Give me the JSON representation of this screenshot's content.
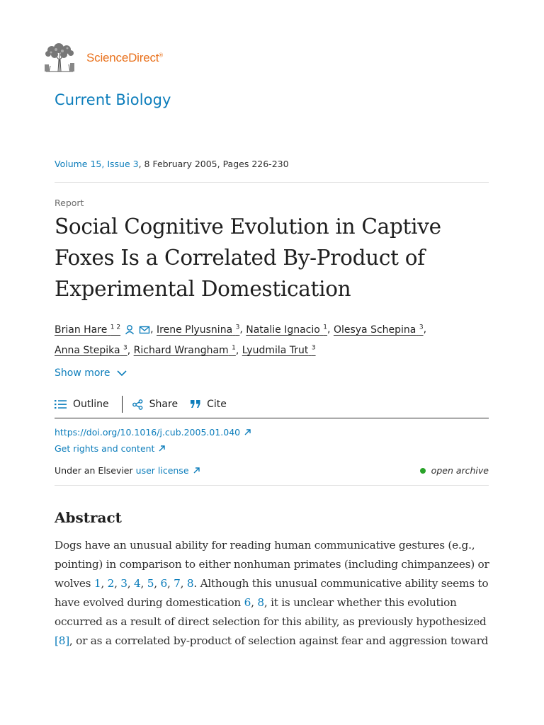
{
  "brand": {
    "name": "ScienceDirect",
    "mark": "®",
    "logo_icon": "elsevier-tree-icon"
  },
  "journal": {
    "name": "Current Biology"
  },
  "issue": {
    "volume_issue": "Volume 15, Issue 3",
    "details": ", 8 February 2005, Pages 226-230"
  },
  "article": {
    "type": "Report",
    "title_lines": [
      "Social Cognitive Evolution in Captive",
      "Foxes Is a Correlated By-Product of",
      "Experimental Domestication"
    ]
  },
  "authors": [
    {
      "name": "Brian Hare",
      "sup": "1 2"
    },
    {
      "name": "Irene Plyusnina",
      "sup": "3"
    },
    {
      "name": "Natalie Ignacio",
      "sup": "1"
    },
    {
      "name": "Olesya Schepina",
      "sup": "3"
    },
    {
      "name": "Anna Stepika",
      "sup": "3"
    },
    {
      "name": "Richard Wrangham",
      "sup": "1"
    },
    {
      "name": "Lyudmila Trut",
      "sup": "3"
    }
  ],
  "show_more": "Show more",
  "toolbar": {
    "outline": "Outline",
    "share": "Share",
    "cite": "Cite"
  },
  "links": {
    "doi": "https://doi.org/10.1016/j.cub.2005.01.040",
    "rights": "Get rights and content",
    "license_prefix": "Under an Elsevier",
    "license_link": "user license",
    "archive": "open archive"
  },
  "abstract": {
    "heading": "Abstract",
    "lines": [
      [
        {
          "t": "Dogs have an unusual ability for reading human communicative gestures (e.g.,"
        }
      ],
      [
        {
          "t": "pointing) in comparison to either nonhuman primates (including chimpanzees) or"
        }
      ],
      [
        {
          "t": "wolves "
        },
        {
          "t": "1",
          "l": 1
        },
        {
          "t": ", "
        },
        {
          "t": "2",
          "l": 1
        },
        {
          "t": ", "
        },
        {
          "t": "3",
          "l": 1
        },
        {
          "t": ", "
        },
        {
          "t": "4",
          "l": 1
        },
        {
          "t": ", "
        },
        {
          "t": "5",
          "l": 1
        },
        {
          "t": ", "
        },
        {
          "t": "6",
          "l": 1
        },
        {
          "t": ", "
        },
        {
          "t": "7",
          "l": 1
        },
        {
          "t": ", "
        },
        {
          "t": "8",
          "l": 1
        },
        {
          "t": ". Although this unusual communicative ability seems to"
        }
      ],
      [
        {
          "t": "have evolved during domestication "
        },
        {
          "t": "6",
          "l": 1
        },
        {
          "t": ", "
        },
        {
          "t": "8",
          "l": 1
        },
        {
          "t": ", it is unclear whether this evolution"
        }
      ],
      [
        {
          "t": "occurred as a result of direct selection for this ability, as previously hypothesized"
        }
      ],
      [
        {
          "t": "[8]",
          "l": 1
        },
        {
          "t": ", or as a correlated by-product of selection against fear and aggression toward"
        }
      ]
    ]
  }
}
